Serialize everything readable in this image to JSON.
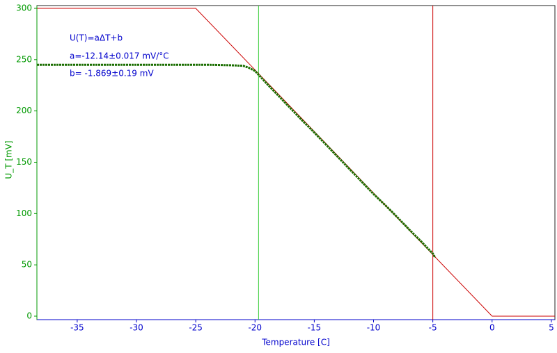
{
  "chart_data": {
    "type": "line",
    "xlabel": "Temperature [C]",
    "ylabel": "U_T [mV]",
    "annotations": [
      "U(T)=aΔT+b",
      "a=-12.14±0.017 mV/°C",
      "b= -1.869±0.19 mV"
    ],
    "xlim": [
      -38.4,
      5.3
    ],
    "ylim": [
      -3.4,
      302.7
    ],
    "xticks": [
      -35,
      -30,
      -25,
      -20,
      -15,
      -10,
      -5,
      0,
      5
    ],
    "yticks": [
      0,
      50,
      100,
      150,
      200,
      250,
      300
    ],
    "vlines": [
      {
        "x": -19.7,
        "color": "#33cc33"
      },
      {
        "x": -5,
        "color": "#cc0000"
      }
    ],
    "series": [
      {
        "color": "#cc0000",
        "x": [
          -38.4,
          -25,
          0,
          5.3
        ],
        "values": [
          300,
          300,
          0,
          0
        ]
      },
      {
        "color": "#1a6e00",
        "x": [
          -38.4,
          -36,
          -34,
          -32,
          -30,
          -28,
          -26,
          -24,
          -22,
          -21,
          -20.5,
          -20,
          -19,
          -18,
          -17,
          -16,
          -15,
          -14,
          -13,
          -12,
          -11,
          -10,
          -9,
          -8,
          -7,
          -6,
          -5,
          -4.8
        ],
        "values": [
          245,
          245,
          245,
          245,
          245,
          245,
          245,
          245,
          244.5,
          244,
          242,
          239,
          226.5,
          214.5,
          202.5,
          190.5,
          179,
          167,
          155,
          143,
          131,
          119,
          108,
          96.5,
          84.5,
          73,
          61,
          57
        ]
      }
    ]
  }
}
